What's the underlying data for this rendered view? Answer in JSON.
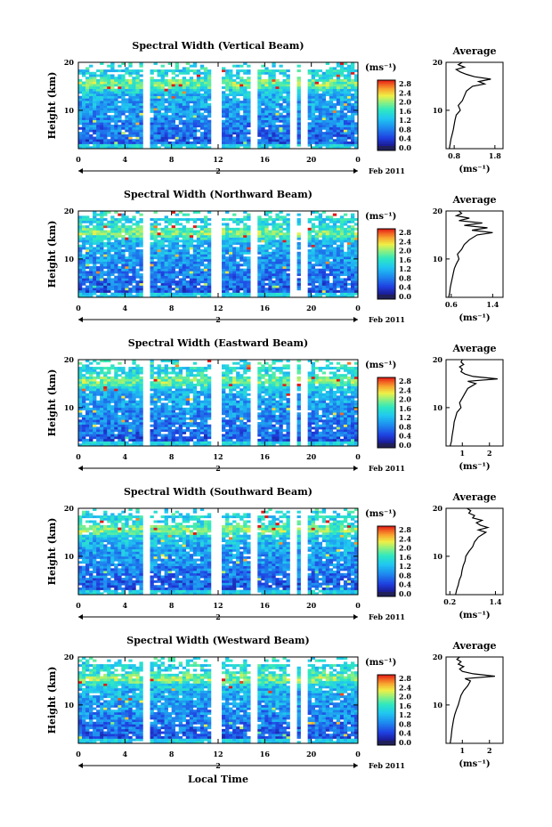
{
  "x_axis_title": "Local Time",
  "colorbar": {
    "unit": "(ms⁻¹)",
    "ticks": [
      "2.8",
      "2.4",
      "2.0",
      "1.6",
      "1.2",
      "0.8",
      "0.4",
      "0.0"
    ],
    "stops": [
      "#f0e8f0",
      "#1a1a6e",
      "#2222cc",
      "#1f5fe0",
      "#1ea0f0",
      "#20d0e8",
      "#30e8a0",
      "#a8f070",
      "#f0f040",
      "#f8b030",
      "#f06020",
      "#e82020"
    ]
  },
  "date_label": "Feb 2011",
  "day_label": "2",
  "avg_title": "Average",
  "avg_unit": "(ms⁻¹)",
  "gap_positions_hours": [
    5.8,
    11.7,
    12.1,
    15.0,
    18.5,
    19.3
  ],
  "chart_data": [
    {
      "type": "heatmap",
      "title": "Spectral Width (Vertical Beam)",
      "ylabel": "Height (km)",
      "xlabel": "Local Time",
      "x_ticks": [
        "0",
        "4",
        "8",
        "12",
        "16",
        "20",
        "0"
      ],
      "y_ticks": [
        "20",
        "10"
      ],
      "xlim": [
        0,
        24
      ],
      "ylim": [
        2,
        20
      ],
      "z_range": [
        0.0,
        2.8
      ],
      "seed": 11,
      "average": {
        "x_ticks": [
          "0.8",
          "1.8"
        ],
        "xlim": [
          0.6,
          2.0
        ],
        "ylim": [
          2,
          20
        ],
        "profile": [
          [
            2,
            0.68
          ],
          [
            3,
            0.7
          ],
          [
            4,
            0.72
          ],
          [
            5,
            0.75
          ],
          [
            6,
            0.78
          ],
          [
            7,
            0.8
          ],
          [
            8,
            0.82
          ],
          [
            9,
            0.85
          ],
          [
            10,
            0.95
          ],
          [
            11,
            0.9
          ],
          [
            12,
            1.0
          ],
          [
            13,
            1.05
          ],
          [
            14,
            1.1
          ],
          [
            15,
            1.25
          ],
          [
            15.5,
            1.55
          ],
          [
            16,
            1.4
          ],
          [
            16.5,
            1.7
          ],
          [
            17,
            1.3
          ],
          [
            17.5,
            1.1
          ],
          [
            18,
            0.95
          ],
          [
            18.5,
            0.85
          ],
          [
            19,
            1.05
          ],
          [
            19.5,
            0.9
          ],
          [
            20,
            1.0
          ]
        ]
      }
    },
    {
      "type": "heatmap",
      "title": "Spectral Width (Northward Beam)",
      "ylabel": "Height (km)",
      "xlabel": "Local Time",
      "x_ticks": [
        "0",
        "4",
        "8",
        "12",
        "16",
        "20",
        "0"
      ],
      "y_ticks": [
        "20",
        "10"
      ],
      "xlim": [
        0,
        24
      ],
      "ylim": [
        2,
        20
      ],
      "z_range": [
        0.0,
        2.8
      ],
      "seed": 23,
      "average": {
        "x_ticks": [
          "0.6",
          "1.4"
        ],
        "xlim": [
          0.5,
          1.6
        ],
        "ylim": [
          2,
          20
        ],
        "profile": [
          [
            2,
            0.55
          ],
          [
            3,
            0.57
          ],
          [
            4,
            0.58
          ],
          [
            5,
            0.6
          ],
          [
            6,
            0.62
          ],
          [
            7,
            0.64
          ],
          [
            8,
            0.66
          ],
          [
            9,
            0.7
          ],
          [
            10,
            0.75
          ],
          [
            11,
            0.72
          ],
          [
            12,
            0.8
          ],
          [
            13,
            0.85
          ],
          [
            14,
            0.95
          ],
          [
            15,
            1.1
          ],
          [
            15.5,
            1.4
          ],
          [
            16,
            1.0
          ],
          [
            16.5,
            1.3
          ],
          [
            17,
            0.85
          ],
          [
            17.5,
            1.2
          ],
          [
            18,
            0.75
          ],
          [
            18.5,
            0.95
          ],
          [
            19,
            0.7
          ],
          [
            19.5,
            0.8
          ],
          [
            20,
            0.75
          ]
        ]
      }
    },
    {
      "type": "heatmap",
      "title": "Spectral Width (Eastward Beam)",
      "ylabel": "Height (km)",
      "xlabel": "Local Time",
      "x_ticks": [
        "0",
        "4",
        "8",
        "12",
        "16",
        "20",
        "0"
      ],
      "y_ticks": [
        "20",
        "10"
      ],
      "xlim": [
        0,
        24
      ],
      "ylim": [
        2,
        20
      ],
      "z_range": [
        0.0,
        2.8
      ],
      "seed": 37,
      "average": {
        "x_ticks": [
          "1",
          "2"
        ],
        "xlim": [
          0.4,
          2.5
        ],
        "ylim": [
          2,
          20
        ],
        "profile": [
          [
            2,
            0.55
          ],
          [
            3,
            0.6
          ],
          [
            4,
            0.62
          ],
          [
            5,
            0.65
          ],
          [
            6,
            0.68
          ],
          [
            7,
            0.7
          ],
          [
            8,
            0.75
          ],
          [
            9,
            0.8
          ],
          [
            10,
            0.95
          ],
          [
            11,
            0.9
          ],
          [
            12,
            1.0
          ],
          [
            13,
            1.1
          ],
          [
            14,
            1.2
          ],
          [
            15,
            1.5
          ],
          [
            15.5,
            1.2
          ],
          [
            16,
            2.3
          ],
          [
            16.5,
            1.4
          ],
          [
            17,
            1.1
          ],
          [
            17.5,
            0.95
          ],
          [
            18,
            1.0
          ],
          [
            18.5,
            0.9
          ],
          [
            19,
            1.05
          ],
          [
            19.5,
            0.95
          ],
          [
            20,
            1.0
          ]
        ]
      }
    },
    {
      "type": "heatmap",
      "title": "Spectral Width (Southward Beam)",
      "ylabel": "Height (km)",
      "xlabel": "Local Time",
      "x_ticks": [
        "0",
        "4",
        "8",
        "12",
        "16",
        "20",
        "0"
      ],
      "y_ticks": [
        "20",
        "10"
      ],
      "xlim": [
        0,
        24
      ],
      "ylim": [
        2,
        20
      ],
      "z_range": [
        0.0,
        2.8
      ],
      "seed": 53,
      "average": {
        "x_ticks": [
          "0.2",
          "1.4"
        ],
        "xlim": [
          0.1,
          1.6
        ],
        "ylim": [
          2,
          20
        ],
        "profile": [
          [
            2,
            0.35
          ],
          [
            3,
            0.38
          ],
          [
            4,
            0.42
          ],
          [
            5,
            0.45
          ],
          [
            6,
            0.5
          ],
          [
            7,
            0.52
          ],
          [
            8,
            0.55
          ],
          [
            9,
            0.6
          ],
          [
            10,
            0.62
          ],
          [
            11,
            0.7
          ],
          [
            12,
            0.8
          ],
          [
            13,
            0.85
          ],
          [
            14,
            0.95
          ],
          [
            15,
            1.15
          ],
          [
            15.5,
            0.95
          ],
          [
            16,
            1.2
          ],
          [
            16.5,
            1.0
          ],
          [
            17,
            0.9
          ],
          [
            17.5,
            1.05
          ],
          [
            18,
            0.8
          ],
          [
            18.5,
            0.85
          ],
          [
            19,
            0.7
          ],
          [
            19.5,
            0.75
          ],
          [
            20,
            0.65
          ]
        ]
      }
    },
    {
      "type": "heatmap",
      "title": "Spectral Width (Westward Beam)",
      "ylabel": "Height (km)",
      "xlabel": "Local Time",
      "x_ticks": [
        "0",
        "4",
        "8",
        "12",
        "16",
        "20",
        "0"
      ],
      "y_ticks": [
        "20",
        "10"
      ],
      "xlim": [
        0,
        24
      ],
      "ylim": [
        2,
        20
      ],
      "z_range": [
        0.0,
        2.8
      ],
      "seed": 71,
      "average": {
        "x_ticks": [
          "1",
          "2"
        ],
        "xlim": [
          0.4,
          2.5
        ],
        "ylim": [
          2,
          20
        ],
        "profile": [
          [
            2,
            0.55
          ],
          [
            3,
            0.58
          ],
          [
            4,
            0.6
          ],
          [
            5,
            0.62
          ],
          [
            6,
            0.65
          ],
          [
            7,
            0.68
          ],
          [
            8,
            0.72
          ],
          [
            9,
            0.78
          ],
          [
            10,
            0.85
          ],
          [
            11,
            0.9
          ],
          [
            12,
            0.95
          ],
          [
            13,
            1.05
          ],
          [
            14,
            1.2
          ],
          [
            15,
            1.3
          ],
          [
            15.5,
            1.1
          ],
          [
            16,
            2.2
          ],
          [
            16.5,
            1.4
          ],
          [
            17,
            1.0
          ],
          [
            17.5,
            0.9
          ],
          [
            18,
            1.05
          ],
          [
            18.5,
            0.85
          ],
          [
            19,
            0.95
          ],
          [
            19.5,
            0.8
          ],
          [
            20,
            0.9
          ]
        ]
      }
    }
  ]
}
